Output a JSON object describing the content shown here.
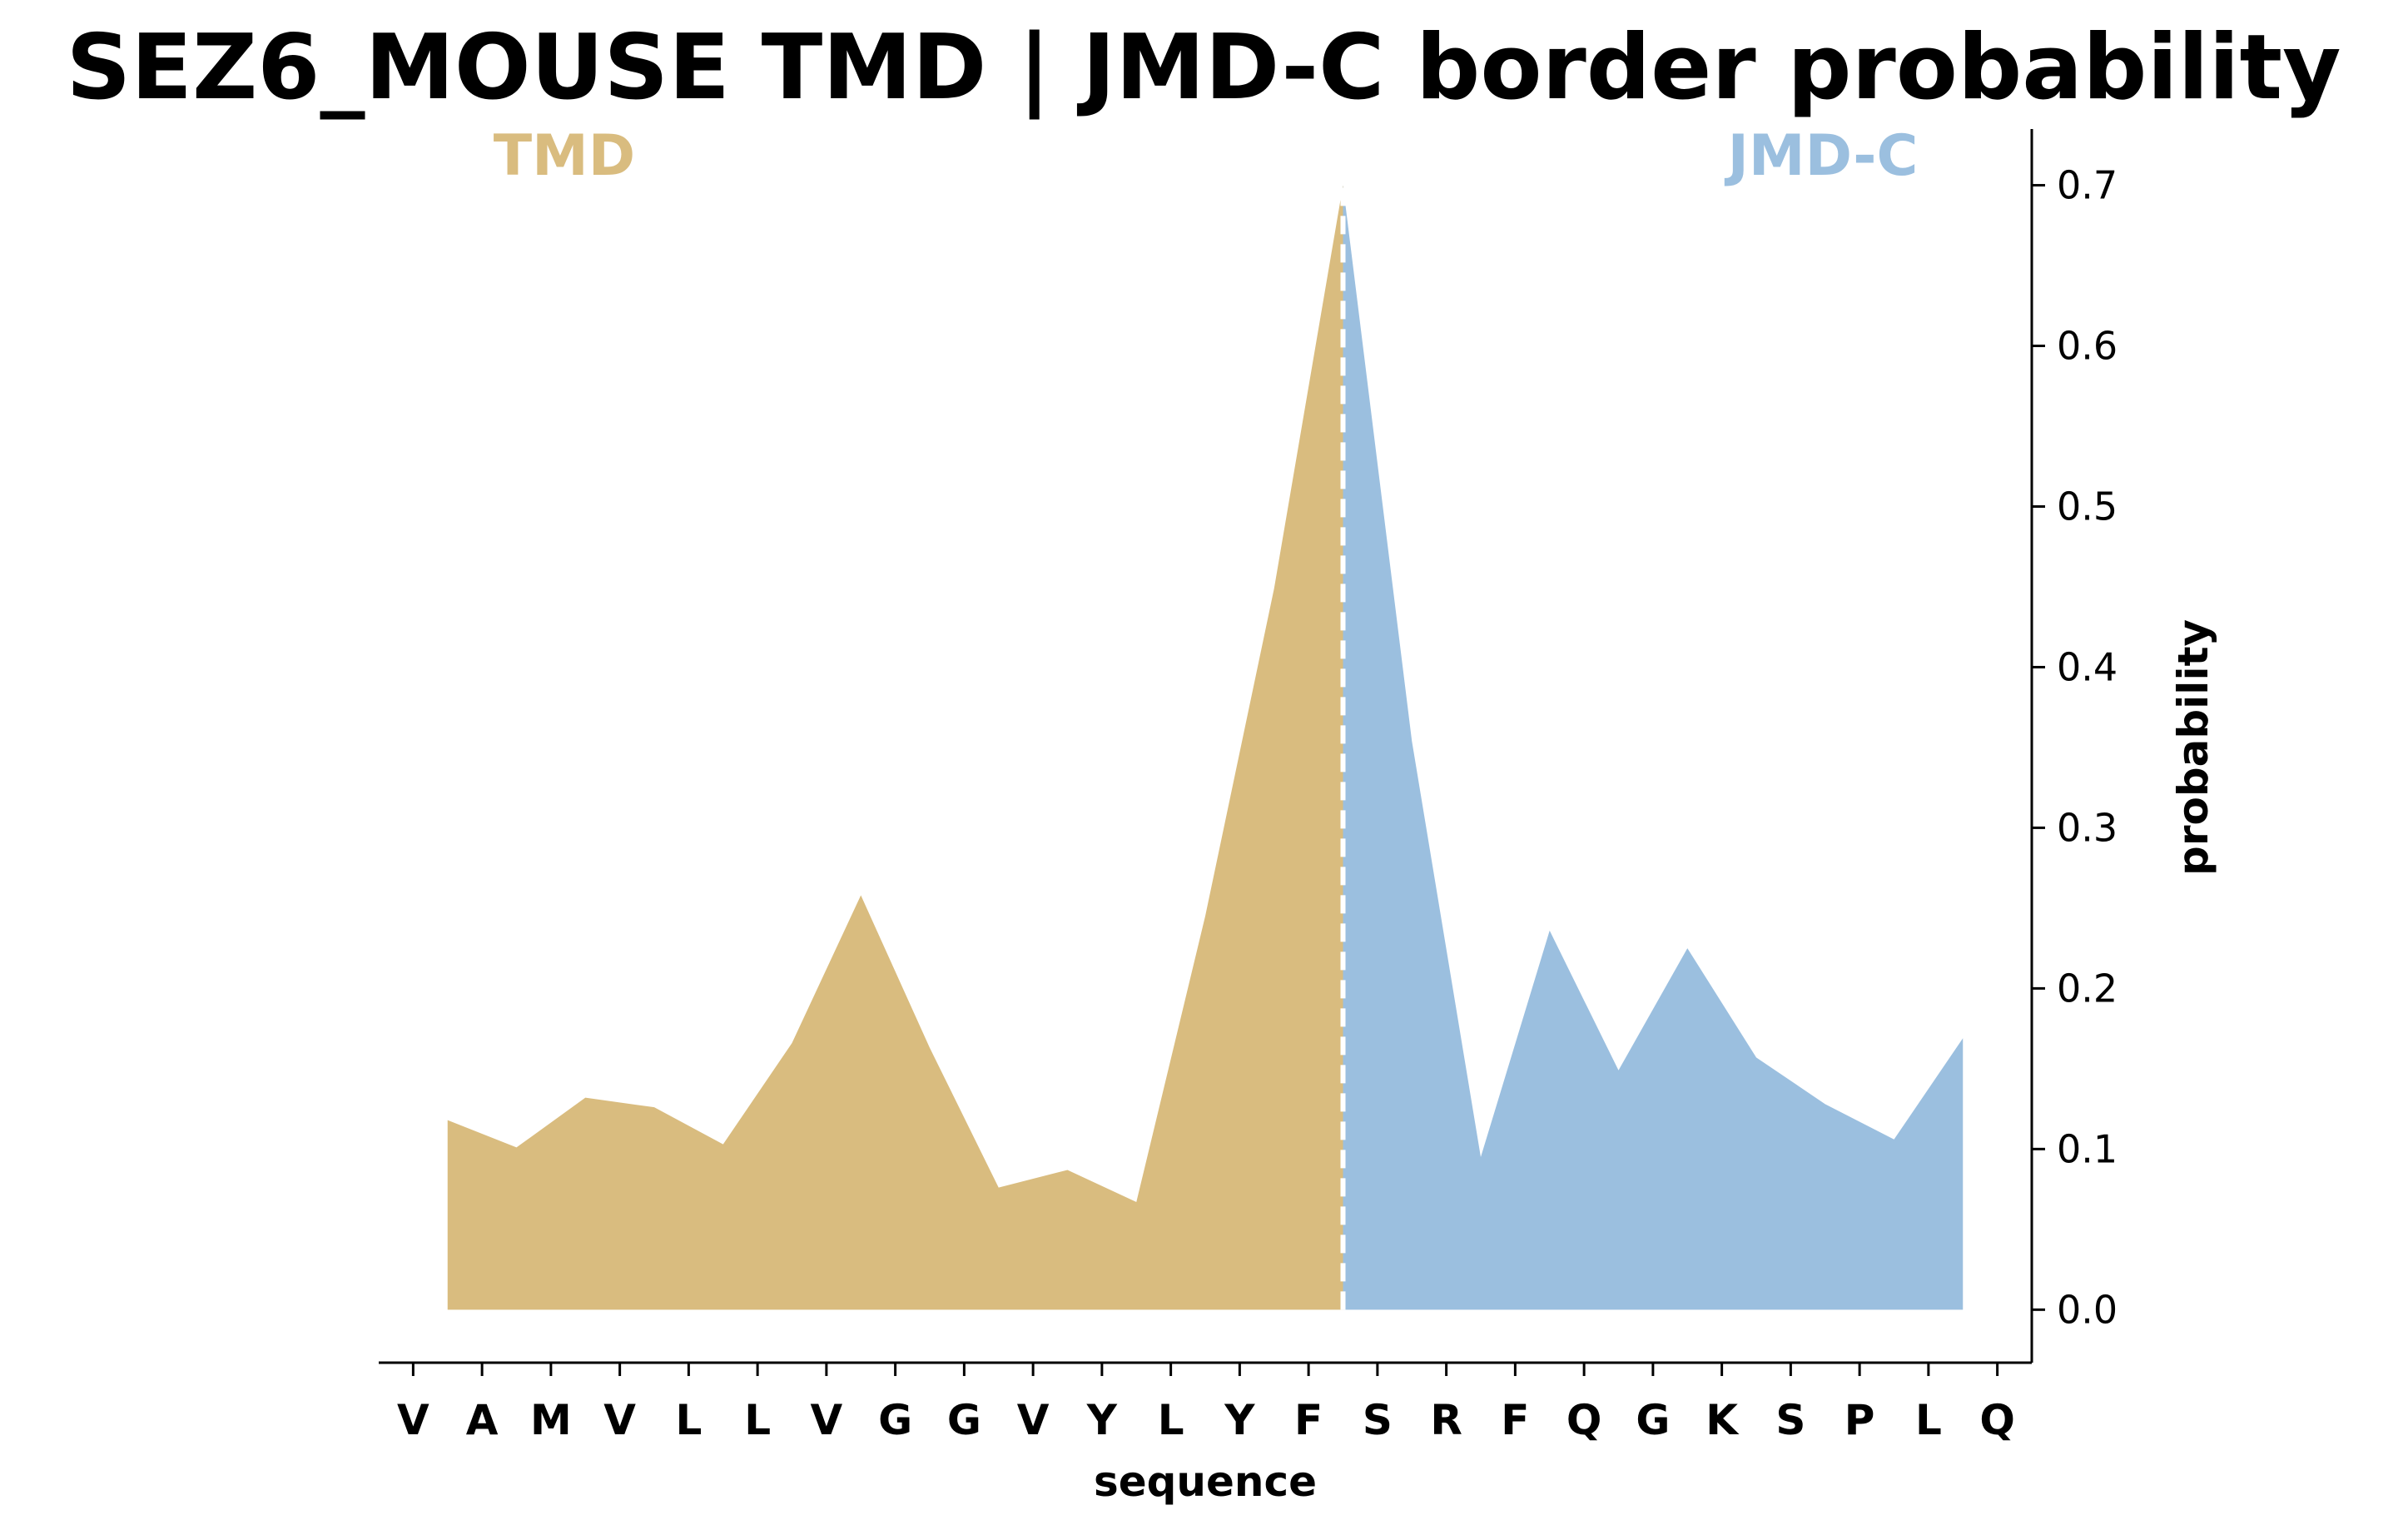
{
  "chart_data": {
    "type": "area",
    "title": "SEZ6_MOUSE TMD | JMD-C border probability",
    "xlabel": "sequence",
    "ylabel": "probability",
    "ylim": [
      -0.033,
      0.735
    ],
    "yticks": [
      0.0,
      0.1,
      0.2,
      0.3,
      0.4,
      0.5,
      0.6,
      0.7
    ],
    "ytick_labels": [
      "0.0",
      "0.1",
      "0.2",
      "0.3",
      "0.4",
      "0.5",
      "0.6",
      "0.7"
    ],
    "yaxis_side": "right",
    "grid": false,
    "categories": [
      "V",
      "A",
      "M",
      "V",
      "L",
      "L",
      "V",
      "G",
      "G",
      "V",
      "Y",
      "L",
      "Y",
      "F",
      "S",
      "R",
      "F",
      "Q",
      "G",
      "K",
      "S",
      "P",
      "L",
      "Q"
    ],
    "regions": [
      {
        "label": "TMD",
        "color": "#d9bc7f",
        "label_position": "top-left"
      },
      {
        "label": "JMD-C",
        "color": "#9bbfdf",
        "label_position": "top-right"
      }
    ],
    "border_line": {
      "style": "dashed",
      "color": "#ffffff"
    },
    "series": [
      {
        "region": "TMD",
        "x": [
          0.5,
          1.5,
          2.5,
          3.5,
          4.5,
          5.5,
          6.5,
          7.5,
          8.5,
          9.5,
          10.5,
          11.5,
          12.5,
          13.5
        ],
        "y": [
          0.118,
          0.101,
          0.132,
          0.126,
          0.103,
          0.166,
          0.258,
          0.163,
          0.076,
          0.087,
          0.067,
          0.245,
          0.449,
          0.7
        ]
      },
      {
        "region": "JMD-C",
        "x": [
          13.5,
          14.5,
          15.5,
          16.5,
          17.5,
          18.5,
          19.5,
          20.5,
          21.5,
          22.5
        ],
        "y": [
          0.7,
          0.354,
          0.095,
          0.236,
          0.149,
          0.225,
          0.157,
          0.128,
          0.106,
          0.169
        ]
      }
    ]
  }
}
